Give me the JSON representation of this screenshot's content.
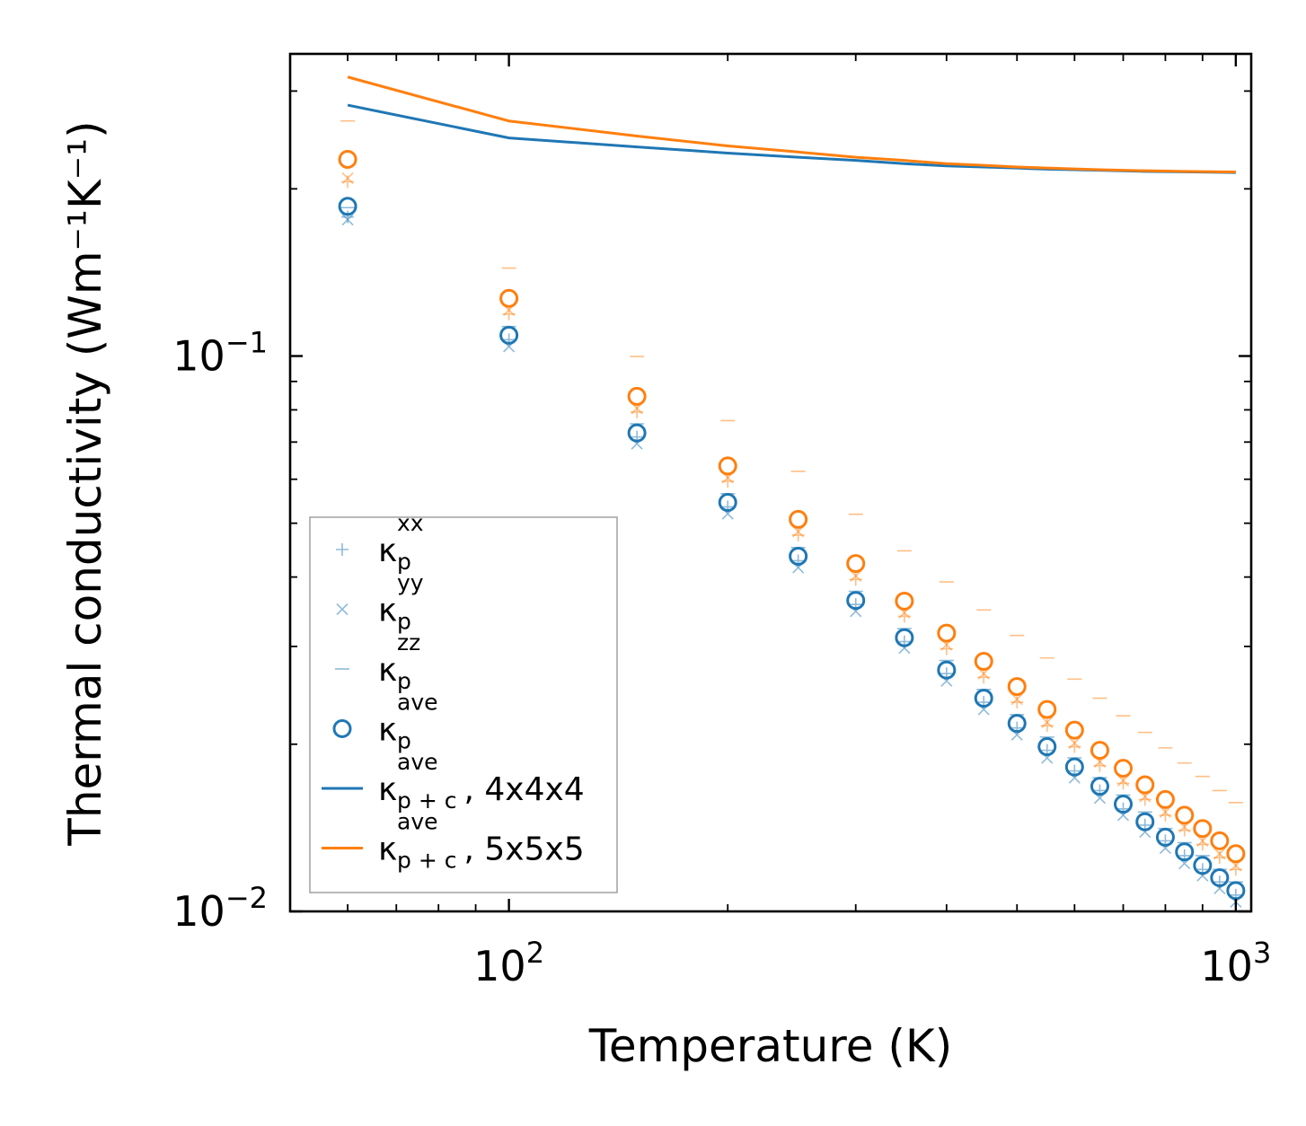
{
  "chart_data": {
    "type": "scatter",
    "xscale": "log",
    "yscale": "log",
    "xlabel": "Temperature (K)",
    "ylabel": "Thermal conductivity (Wm⁻¹K⁻¹)",
    "xlim": [
      50,
      1050
    ],
    "ylim": [
      0.01,
      0.35
    ],
    "x_ticks": [
      {
        "value": 100,
        "base": "10",
        "exp": "2"
      },
      {
        "value": 1000,
        "base": "10",
        "exp": "3"
      }
    ],
    "y_ticks": [
      {
        "value": 0.01,
        "base": "10",
        "exp": "−2"
      },
      {
        "value": 0.1,
        "base": "10",
        "exp": "−1"
      }
    ],
    "x": [
      60,
      100,
      150,
      200,
      250,
      300,
      350,
      400,
      450,
      500,
      550,
      600,
      650,
      700,
      750,
      800,
      850,
      900,
      950,
      1000
    ],
    "series": [
      {
        "name": "kxx_4",
        "marker": "plus",
        "color": "#1f77b4",
        "values": [
          0.178,
          0.107,
          0.0715,
          0.0535,
          0.0428,
          0.0357,
          0.0306,
          0.0268,
          0.0238,
          0.0214,
          0.0195,
          0.0179,
          0.0165,
          0.0153,
          0.0143,
          0.0134,
          0.0126,
          0.0119,
          0.0113,
          0.0107
        ]
      },
      {
        "name": "kyy_4",
        "marker": "x",
        "color": "#1f77b4",
        "values": [
          0.176,
          0.104,
          0.0695,
          0.052,
          0.0416,
          0.0347,
          0.0298,
          0.026,
          0.0231,
          0.0208,
          0.0189,
          0.0174,
          0.016,
          0.0149,
          0.0139,
          0.013,
          0.0122,
          0.0116,
          0.011,
          0.0104
        ]
      },
      {
        "name": "kzz_4",
        "marker": "dash",
        "color": "#1f77b4",
        "values": [
          0.185,
          0.113,
          0.0755,
          0.0565,
          0.0452,
          0.0377,
          0.0323,
          0.0283,
          0.0251,
          0.0226,
          0.0206,
          0.0189,
          0.0174,
          0.0162,
          0.0151,
          0.0141,
          0.0133,
          0.0126,
          0.0119,
          0.0113
        ]
      },
      {
        "name": "kave_4",
        "marker": "circle",
        "color": "#1f77b4",
        "values": [
          0.186,
          0.109,
          0.0727,
          0.0545,
          0.0436,
          0.0363,
          0.0311,
          0.0272,
          0.0242,
          0.0218,
          0.0198,
          0.0182,
          0.0168,
          0.0156,
          0.0145,
          0.0136,
          0.0128,
          0.0121,
          0.0115,
          0.0109
        ]
      },
      {
        "name": "kxx_5",
        "marker": "plus",
        "color": "#ff7f0e",
        "values": [
          0.206,
          0.119,
          0.0793,
          0.0595,
          0.0476,
          0.0396,
          0.034,
          0.0297,
          0.0264,
          0.0238,
          0.0216,
          0.0198,
          0.0183,
          0.017,
          0.0159,
          0.0149,
          0.014,
          0.0132,
          0.0125,
          0.0119
        ]
      },
      {
        "name": "kyy_5",
        "marker": "x",
        "color": "#ff7f0e",
        "values": [
          0.209,
          0.121,
          0.0805,
          0.0604,
          0.0483,
          0.0402,
          0.0345,
          0.0302,
          0.0268,
          0.0241,
          0.0219,
          0.0201,
          0.0186,
          0.0172,
          0.0161,
          0.0151,
          0.0142,
          0.0134,
          0.0127,
          0.0121
        ]
      },
      {
        "name": "kzz_5",
        "marker": "dash",
        "color": "#ff7f0e",
        "values": [
          0.265,
          0.144,
          0.0998,
          0.0765,
          0.062,
          0.0519,
          0.0446,
          0.0392,
          0.0349,
          0.0314,
          0.0286,
          0.0262,
          0.0242,
          0.0225,
          0.021,
          0.0197,
          0.0185,
          0.0175,
          0.0165,
          0.0157
        ]
      },
      {
        "name": "kave_5",
        "marker": "circle",
        "color": "#ff7f0e",
        "values": [
          0.226,
          0.127,
          0.0846,
          0.0634,
          0.0508,
          0.0423,
          0.0362,
          0.0317,
          0.0282,
          0.0254,
          0.0231,
          0.0212,
          0.0195,
          0.0181,
          0.0169,
          0.0159,
          0.0149,
          0.0141,
          0.0134,
          0.0127
        ]
      },
      {
        "name": "kpc_4x4x4",
        "marker": "line",
        "color": "#1f77b4",
        "values": [
          0.283,
          0.247,
          0.238,
          0.232,
          0.228,
          0.225,
          0.222,
          0.22,
          0.219,
          0.218,
          0.217,
          0.2165,
          0.216,
          0.2155,
          0.215,
          0.2148,
          0.2146,
          0.2144,
          0.2142,
          0.214
        ]
      },
      {
        "name": "kpc_5x5x5",
        "marker": "line",
        "color": "#ff7f0e",
        "values": [
          0.318,
          0.265,
          0.249,
          0.239,
          0.233,
          0.228,
          0.225,
          0.222,
          0.2205,
          0.219,
          0.218,
          0.2172,
          0.2165,
          0.216,
          0.2156,
          0.2153,
          0.215,
          0.2148,
          0.2146,
          0.2145
        ]
      }
    ],
    "legend": {
      "position": "lower-left",
      "entries": [
        {
          "marker": "plus",
          "color": "#1f77b4",
          "sym": "κ",
          "sub": "p",
          "sup": "xx",
          "tail": ""
        },
        {
          "marker": "x",
          "color": "#1f77b4",
          "sym": "κ",
          "sub": "p",
          "sup": "yy",
          "tail": ""
        },
        {
          "marker": "dash",
          "color": "#1f77b4",
          "sym": "κ",
          "sub": "p",
          "sup": "zz",
          "tail": ""
        },
        {
          "marker": "circle",
          "color": "#1f77b4",
          "sym": "κ",
          "sub": "p",
          "sup": "ave",
          "tail": ""
        },
        {
          "marker": "line",
          "color": "#1f77b4",
          "sym": "κ",
          "sub": "p + c",
          "sup": "ave",
          "tail": ", 4x4x4"
        },
        {
          "marker": "line",
          "color": "#ff7f0e",
          "sym": "κ",
          "sub": "p + c",
          "sup": "ave",
          "tail": ", 5x5x5"
        }
      ]
    }
  }
}
